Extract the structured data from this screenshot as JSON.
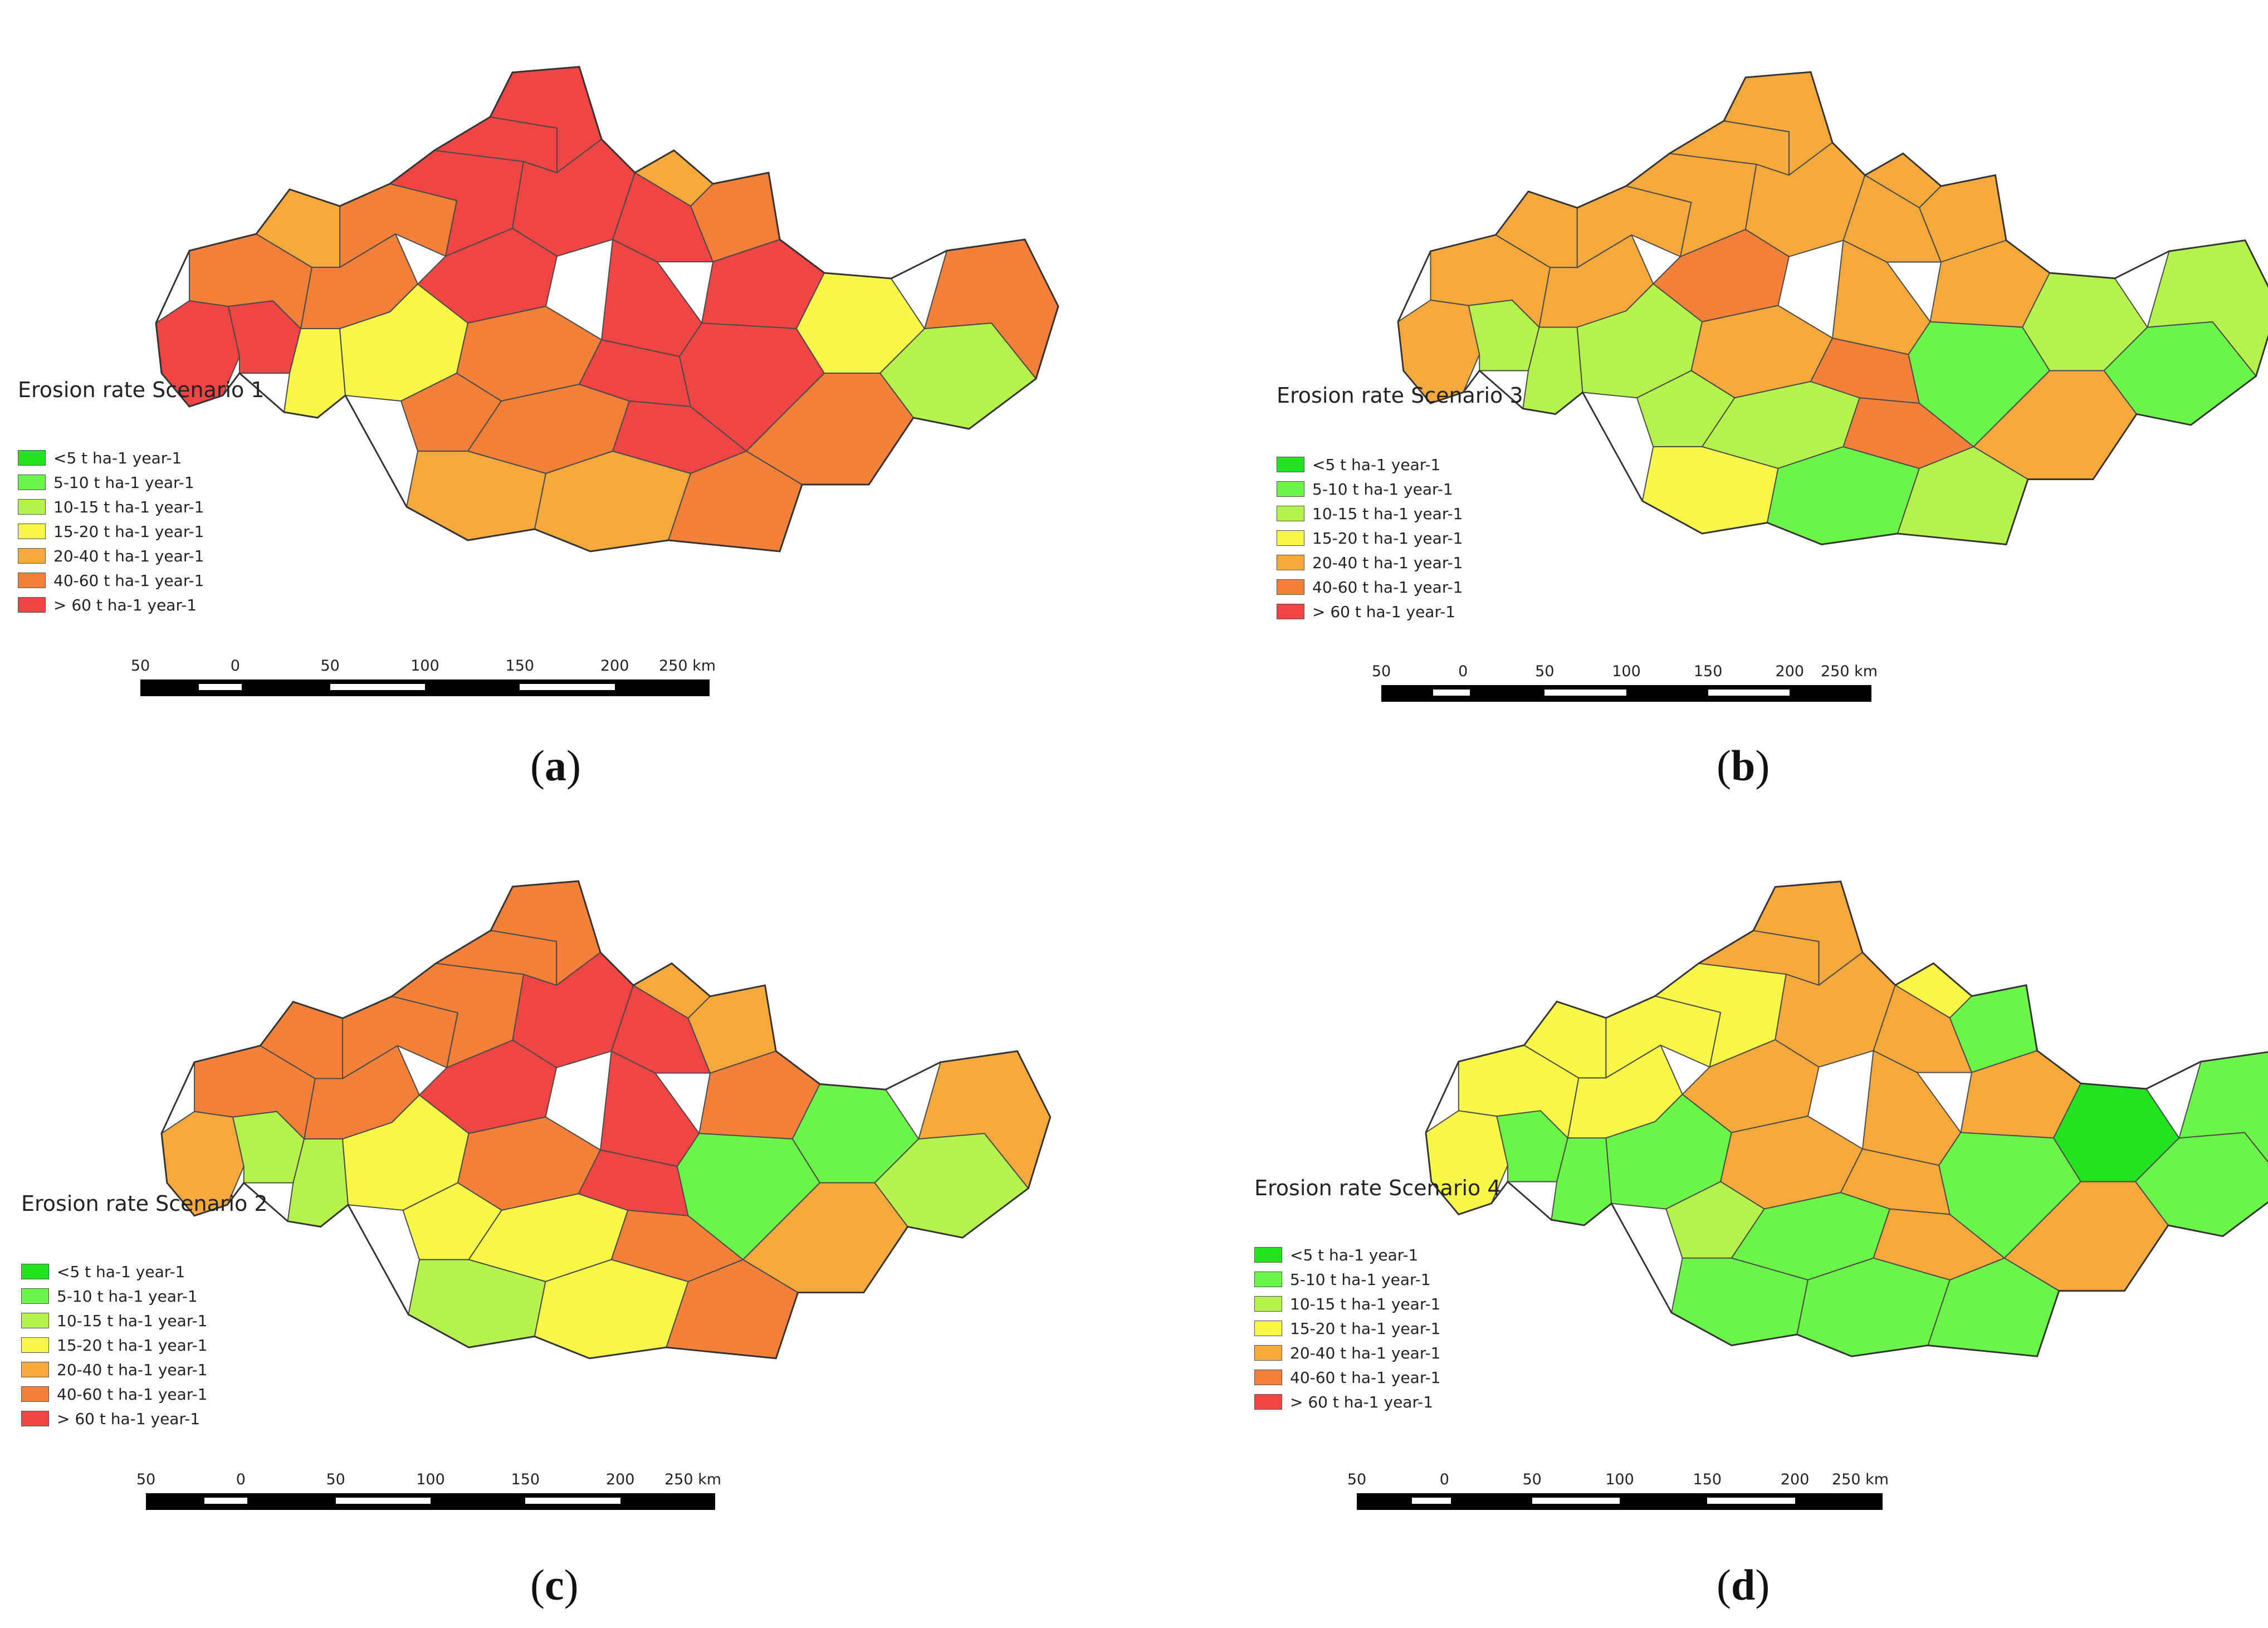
{
  "legend_colors": [
    "#21e321",
    "#6bf548",
    "#b5f24b",
    "#f7f74a",
    "#f5a93d",
    "#f0803a",
    "#f04545"
  ],
  "legend_items": [
    "<5 t ha-1 year-1",
    "5-10 t ha-1 year-1",
    "10-15 t ha-1 year-1",
    "15-20 t ha-1 year-1",
    "20-40 t ha-1 year-1",
    "40-60 t ha-1 year-1",
    "> 60 t ha-1 year-1"
  ],
  "scale_labels": [
    "50",
    "0",
    "50",
    "100",
    "150",
    "200",
    "250 km"
  ],
  "panels": [
    {
      "id": "a",
      "title": "Erosion rate Scenario 1",
      "label": "a",
      "region_classes": [
        6,
        6,
        5,
        4,
        5,
        3,
        3,
        5,
        6,
        6,
        6,
        6,
        6,
        5,
        5,
        5,
        4,
        4,
        5,
        6,
        6,
        6,
        6,
        4,
        5,
        6,
        6,
        3,
        2,
        5,
        5
      ]
    },
    {
      "id": "b",
      "title": "Erosion rate Scenario 3",
      "label": "b",
      "region_classes": [
        4,
        2,
        4,
        4,
        4,
        2,
        2,
        4,
        4,
        4,
        4,
        4,
        5,
        4,
        2,
        2,
        3,
        1,
        2,
        5,
        5,
        4,
        4,
        4,
        4,
        4,
        1,
        2,
        1,
        4,
        2
      ]
    },
    {
      "id": "c",
      "title": "Erosion rate Scenario 2",
      "label": "c",
      "region_classes": [
        4,
        2,
        5,
        5,
        5,
        2,
        3,
        5,
        5,
        5,
        5,
        6,
        6,
        5,
        3,
        3,
        2,
        3,
        5,
        6,
        5,
        6,
        6,
        4,
        4,
        5,
        1,
        1,
        2,
        4,
        4
      ]
    },
    {
      "id": "d",
      "title": "Erosion rate Scenario 4",
      "label": "d",
      "region_classes": [
        3,
        1,
        3,
        3,
        3,
        1,
        1,
        3,
        3,
        4,
        4,
        4,
        4,
        4,
        2,
        1,
        1,
        1,
        1,
        4,
        4,
        4,
        4,
        3,
        1,
        4,
        1,
        0,
        1,
        4,
        1
      ]
    }
  ]
}
